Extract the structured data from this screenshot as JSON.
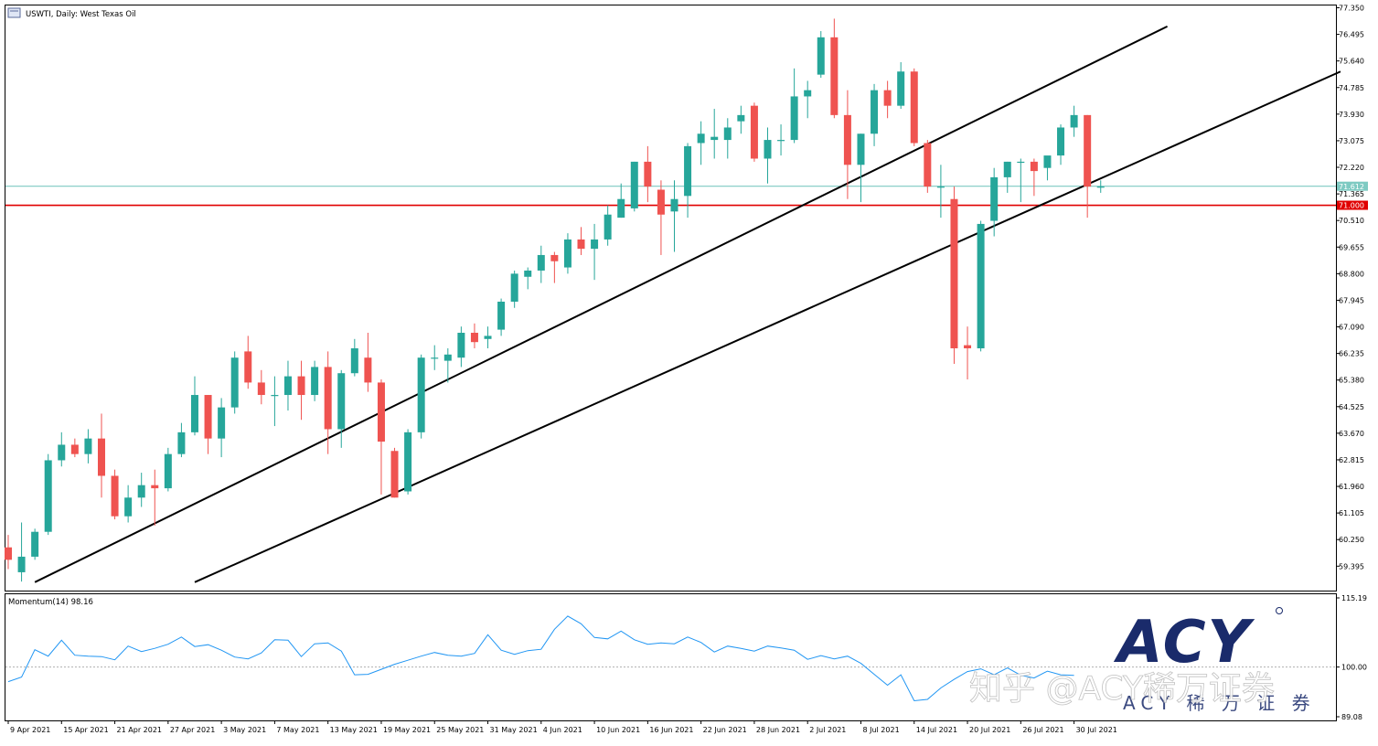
{
  "header": {
    "title": "USWTI, Daily:  West Texas Oil"
  },
  "momentum_panel": {
    "label": "Momentum(14) 98.16"
  },
  "watermark": {
    "brand": "ACY",
    "brand_sub": "ACY  稀  万  证  券",
    "zhihu": "知乎 @ACY稀万证券"
  },
  "colors": {
    "bull": "#26a69a",
    "bear": "#ef5350",
    "level_red": "#e00000",
    "level_teal": "#7ecac2",
    "momentum": "#2196f3",
    "channel": "#000000",
    "brand_navy": "#1a2b6b"
  },
  "chart_data": [
    {
      "type": "candlestick",
      "title": "USWTI, Daily:  West Texas Oil",
      "ylim": [
        58.9,
        77.35
      ],
      "price_ticks": [
        "77.350",
        "76.495",
        "75.640",
        "74.785",
        "73.930",
        "73.075",
        "72.220",
        "71.365",
        "70.510",
        "69.655",
        "68.800",
        "67.945",
        "67.090",
        "66.235",
        "65.380",
        "64.525",
        "63.670",
        "62.815",
        "61.960",
        "61.105",
        "60.250",
        "59.395"
      ],
      "date_ticks": [
        {
          "label": "9 Apr 2021",
          "index": 0
        },
        {
          "label": "15 Apr 2021",
          "index": 4
        },
        {
          "label": "21 Apr 2021",
          "index": 8
        },
        {
          "label": "27 Apr 2021",
          "index": 12
        },
        {
          "label": "3 May 2021",
          "index": 16
        },
        {
          "label": "7 May 2021",
          "index": 20
        },
        {
          "label": "13 May 2021",
          "index": 24
        },
        {
          "label": "19 May 2021",
          "index": 28
        },
        {
          "label": "25 May 2021",
          "index": 32
        },
        {
          "label": "31 May 2021",
          "index": 36
        },
        {
          "label": "4 Jun 2021",
          "index": 40
        },
        {
          "label": "10 Jun 2021",
          "index": 44
        },
        {
          "label": "16 Jun 2021",
          "index": 48
        },
        {
          "label": "22 Jun 2021",
          "index": 52
        },
        {
          "label": "28 Jun 2021",
          "index": 56
        },
        {
          "label": "2 Jul 2021",
          "index": 60
        },
        {
          "label": "8 Jul 2021",
          "index": 64
        },
        {
          "label": "14 Jul 2021",
          "index": 68
        },
        {
          "label": "20 Jul 2021",
          "index": 72
        },
        {
          "label": "26 Jul 2021",
          "index": 76
        },
        {
          "label": "30 Jul 2021",
          "index": 80
        }
      ],
      "candles": [
        {
          "o": 60.0,
          "h": 60.4,
          "l": 59.3,
          "c": 59.6
        },
        {
          "o": 59.2,
          "h": 60.8,
          "l": 58.9,
          "c": 59.7
        },
        {
          "o": 59.7,
          "h": 60.6,
          "l": 59.6,
          "c": 60.5
        },
        {
          "o": 60.5,
          "h": 63.0,
          "l": 60.4,
          "c": 62.8
        },
        {
          "o": 62.8,
          "h": 63.7,
          "l": 62.6,
          "c": 63.3
        },
        {
          "o": 63.3,
          "h": 63.5,
          "l": 62.9,
          "c": 63.0
        },
        {
          "o": 63.0,
          "h": 63.8,
          "l": 62.7,
          "c": 63.5
        },
        {
          "o": 63.5,
          "h": 64.3,
          "l": 61.6,
          "c": 62.3
        },
        {
          "o": 62.3,
          "h": 62.5,
          "l": 60.9,
          "c": 61.0
        },
        {
          "o": 61.0,
          "h": 62.0,
          "l": 60.8,
          "c": 61.6
        },
        {
          "o": 61.6,
          "h": 62.4,
          "l": 61.3,
          "c": 62.0
        },
        {
          "o": 62.0,
          "h": 62.5,
          "l": 60.7,
          "c": 61.9
        },
        {
          "o": 61.9,
          "h": 63.2,
          "l": 61.8,
          "c": 63.0
        },
        {
          "o": 63.0,
          "h": 64.0,
          "l": 62.9,
          "c": 63.7
        },
        {
          "o": 63.7,
          "h": 65.5,
          "l": 63.6,
          "c": 64.9
        },
        {
          "o": 64.9,
          "h": 64.9,
          "l": 63.0,
          "c": 63.5
        },
        {
          "o": 63.5,
          "h": 64.8,
          "l": 62.9,
          "c": 64.5
        },
        {
          "o": 64.5,
          "h": 66.3,
          "l": 64.3,
          "c": 66.1
        },
        {
          "o": 66.3,
          "h": 66.8,
          "l": 65.1,
          "c": 65.3
        },
        {
          "o": 65.3,
          "h": 65.7,
          "l": 64.6,
          "c": 64.9
        },
        {
          "o": 64.9,
          "h": 65.5,
          "l": 63.9,
          "c": 64.9
        },
        {
          "o": 64.9,
          "h": 66.0,
          "l": 64.4,
          "c": 65.5
        },
        {
          "o": 65.5,
          "h": 66.0,
          "l": 64.1,
          "c": 64.9
        },
        {
          "o": 64.9,
          "h": 66.0,
          "l": 64.7,
          "c": 65.8
        },
        {
          "o": 65.8,
          "h": 66.3,
          "l": 63.0,
          "c": 63.8
        },
        {
          "o": 63.8,
          "h": 65.7,
          "l": 63.2,
          "c": 65.6
        },
        {
          "o": 65.6,
          "h": 66.7,
          "l": 65.5,
          "c": 66.4
        },
        {
          "o": 66.1,
          "h": 66.9,
          "l": 65.0,
          "c": 65.3
        },
        {
          "o": 65.3,
          "h": 65.4,
          "l": 61.7,
          "c": 63.4
        },
        {
          "o": 63.1,
          "h": 63.2,
          "l": 61.6,
          "c": 61.6
        },
        {
          "o": 61.8,
          "h": 63.8,
          "l": 61.7,
          "c": 63.7
        },
        {
          "o": 63.7,
          "h": 66.2,
          "l": 63.5,
          "c": 66.1
        },
        {
          "o": 66.1,
          "h": 66.5,
          "l": 65.7,
          "c": 66.1
        },
        {
          "o": 66.0,
          "h": 66.4,
          "l": 65.3,
          "c": 66.2
        },
        {
          "o": 66.1,
          "h": 67.1,
          "l": 65.8,
          "c": 66.9
        },
        {
          "o": 66.9,
          "h": 67.2,
          "l": 66.4,
          "c": 66.6
        },
        {
          "o": 66.7,
          "h": 67.1,
          "l": 66.4,
          "c": 66.8
        },
        {
          "o": 67.0,
          "h": 68.0,
          "l": 66.8,
          "c": 67.9
        },
        {
          "o": 67.9,
          "h": 68.9,
          "l": 67.7,
          "c": 68.8
        },
        {
          "o": 68.7,
          "h": 69.0,
          "l": 68.3,
          "c": 68.9
        },
        {
          "o": 68.9,
          "h": 69.7,
          "l": 68.5,
          "c": 69.4
        },
        {
          "o": 69.4,
          "h": 69.5,
          "l": 68.5,
          "c": 69.2
        },
        {
          "o": 69.0,
          "h": 70.1,
          "l": 68.8,
          "c": 69.9
        },
        {
          "o": 69.9,
          "h": 70.3,
          "l": 69.4,
          "c": 69.6
        },
        {
          "o": 69.6,
          "h": 70.4,
          "l": 68.6,
          "c": 69.9
        },
        {
          "o": 69.9,
          "h": 71.0,
          "l": 69.7,
          "c": 70.7
        },
        {
          "o": 70.6,
          "h": 71.7,
          "l": 70.6,
          "c": 71.2
        },
        {
          "o": 70.9,
          "h": 72.4,
          "l": 70.8,
          "c": 72.4
        },
        {
          "o": 72.4,
          "h": 72.9,
          "l": 71.1,
          "c": 71.6
        },
        {
          "o": 71.5,
          "h": 71.8,
          "l": 69.4,
          "c": 70.7
        },
        {
          "o": 70.8,
          "h": 71.8,
          "l": 69.5,
          "c": 71.2
        },
        {
          "o": 71.3,
          "h": 73.0,
          "l": 70.6,
          "c": 72.9
        },
        {
          "o": 73.0,
          "h": 73.7,
          "l": 72.3,
          "c": 73.3
        },
        {
          "o": 73.1,
          "h": 74.1,
          "l": 72.5,
          "c": 73.2
        },
        {
          "o": 73.1,
          "h": 73.8,
          "l": 72.5,
          "c": 73.5
        },
        {
          "o": 73.7,
          "h": 74.2,
          "l": 73.3,
          "c": 73.9
        },
        {
          "o": 74.2,
          "h": 74.3,
          "l": 72.4,
          "c": 72.5
        },
        {
          "o": 72.5,
          "h": 73.5,
          "l": 71.7,
          "c": 73.1
        },
        {
          "o": 73.1,
          "h": 73.6,
          "l": 72.6,
          "c": 73.1
        },
        {
          "o": 73.1,
          "h": 75.4,
          "l": 73.0,
          "c": 74.5
        },
        {
          "o": 74.5,
          "h": 75.0,
          "l": 73.8,
          "c": 74.7
        },
        {
          "o": 75.2,
          "h": 76.6,
          "l": 75.1,
          "c": 76.4
        },
        {
          "o": 76.4,
          "h": 77.0,
          "l": 73.8,
          "c": 73.9
        },
        {
          "o": 73.9,
          "h": 74.7,
          "l": 71.2,
          "c": 72.3
        },
        {
          "o": 72.3,
          "h": 73.3,
          "l": 71.1,
          "c": 73.3
        },
        {
          "o": 73.3,
          "h": 74.9,
          "l": 72.9,
          "c": 74.7
        },
        {
          "o": 74.7,
          "h": 75.0,
          "l": 73.8,
          "c": 74.2
        },
        {
          "o": 74.2,
          "h": 75.6,
          "l": 74.1,
          "c": 75.3
        },
        {
          "o": 75.3,
          "h": 75.4,
          "l": 72.9,
          "c": 73.0
        },
        {
          "o": 73.0,
          "h": 73.1,
          "l": 71.4,
          "c": 71.6
        },
        {
          "o": 71.6,
          "h": 72.3,
          "l": 70.6,
          "c": 71.6
        },
        {
          "o": 71.2,
          "h": 71.6,
          "l": 65.9,
          "c": 66.4
        },
        {
          "o": 66.5,
          "h": 67.1,
          "l": 65.4,
          "c": 66.4
        },
        {
          "o": 66.4,
          "h": 70.5,
          "l": 66.3,
          "c": 70.4
        },
        {
          "o": 70.5,
          "h": 72.2,
          "l": 70.0,
          "c": 71.9
        },
        {
          "o": 71.9,
          "h": 72.4,
          "l": 71.4,
          "c": 72.4
        },
        {
          "o": 72.4,
          "h": 72.5,
          "l": 71.1,
          "c": 72.4
        },
        {
          "o": 72.4,
          "h": 72.5,
          "l": 71.3,
          "c": 72.1
        },
        {
          "o": 72.2,
          "h": 72.5,
          "l": 71.8,
          "c": 72.6
        },
        {
          "o": 72.6,
          "h": 73.6,
          "l": 72.3,
          "c": 73.5
        },
        {
          "o": 73.5,
          "h": 74.2,
          "l": 73.2,
          "c": 73.9
        },
        {
          "o": 73.9,
          "h": 73.9,
          "l": 70.6,
          "c": 71.6
        },
        {
          "o": 71.6,
          "h": 71.8,
          "l": 71.4,
          "c": 71.6
        }
      ],
      "levels": [
        {
          "name": "current_price",
          "value": 71.612,
          "label": "71.612"
        },
        {
          "name": "support",
          "value": 71.0,
          "label": "71.000"
        }
      ],
      "channel_lines": [
        {
          "x1": 2,
          "y1": 58.88,
          "x2": 87,
          "y2": 76.75
        },
        {
          "x1": 14,
          "y1": 58.88,
          "x2": 100,
          "y2": 75.3
        }
      ]
    },
    {
      "type": "line",
      "title": "Momentum(14) 98.16",
      "ylim": [
        89.08,
        115.19
      ],
      "reference": 100.0,
      "ticks": [
        "115.19",
        "100.00",
        "89.08"
      ],
      "series": [
        {
          "values": [
            96.8,
            97.8,
            103.8,
            102.4,
            105.9,
            102.6,
            102.4,
            102.3,
            101.6,
            104.6,
            103.4,
            104.1,
            105.0,
            106.6,
            104.5,
            104.9,
            103.7,
            102.2,
            101.8,
            103.1,
            106.0,
            105.9,
            102.3,
            105.1,
            105.3,
            103.5,
            98.3,
            98.4,
            99.5,
            100.6,
            101.5,
            102.4,
            103.2,
            102.6,
            102.4,
            103.0,
            107.1,
            103.7,
            102.8,
            103.6,
            103.9,
            108.3,
            111.2,
            109.5,
            106.5,
            106.2,
            107.9,
            106.0,
            105.0,
            105.3,
            105.1,
            106.6,
            105.4,
            103.3,
            104.6,
            104.1,
            103.5,
            104.6,
            104.2,
            103.7,
            101.7,
            102.5,
            101.8,
            102.4,
            100.8,
            98.4,
            96.0,
            98.3,
            92.6,
            92.9,
            95.4,
            97.3,
            99.0,
            99.6,
            98.3,
            99.8,
            98.2,
            97.6,
            99.1,
            98.3,
            98.16
          ]
        }
      ]
    }
  ]
}
